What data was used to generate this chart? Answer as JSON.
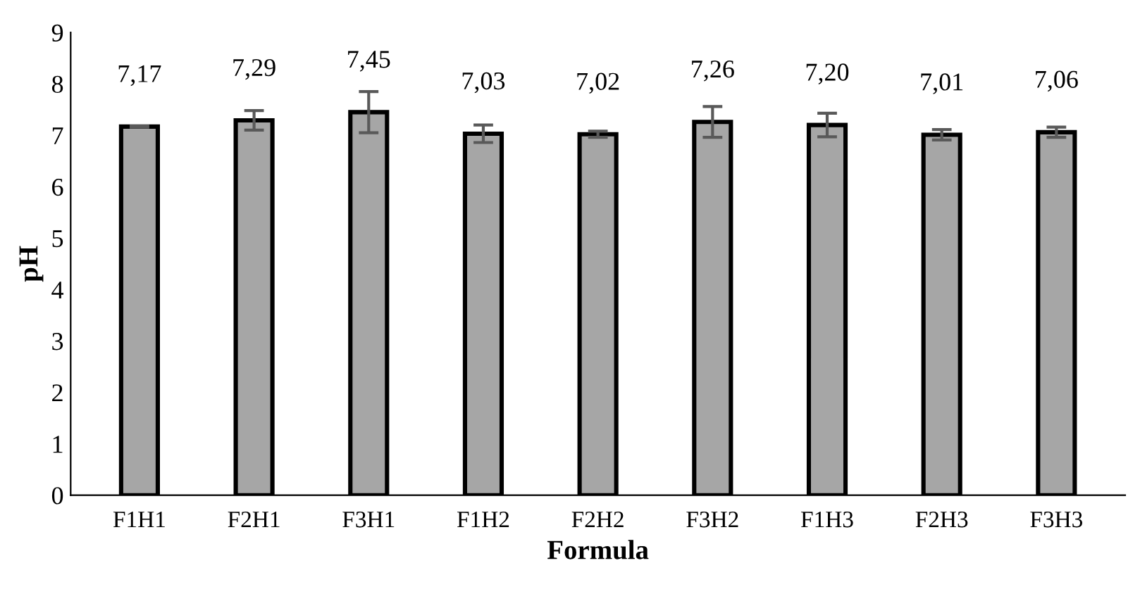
{
  "chart_data": {
    "type": "bar",
    "xlabel": "Formula",
    "ylabel": "pH",
    "categories": [
      "F1H1",
      "F2H1",
      "F3H1",
      "F1H2",
      "F2H2",
      "F3H2",
      "F1H3",
      "F2H3",
      "F3H3"
    ],
    "values": [
      7.17,
      7.29,
      7.45,
      7.03,
      7.02,
      7.26,
      7.2,
      7.01,
      7.06
    ],
    "errors": [
      0.01,
      0.19,
      0.4,
      0.17,
      0.06,
      0.3,
      0.23,
      0.1,
      0.1
    ],
    "value_labels": [
      "7,17",
      "7,29",
      "7,45",
      "7,03",
      "7,02",
      "7,26",
      "7,20",
      "7,01",
      "7,06"
    ],
    "color": "#a6a6a6",
    "ylim": [
      0,
      9
    ],
    "yticks": [
      0,
      1,
      2,
      3,
      4,
      5,
      6,
      7,
      8,
      9
    ],
    "grid": false,
    "legend": false
  }
}
